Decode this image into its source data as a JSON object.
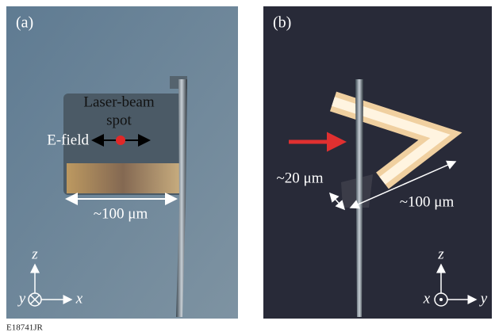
{
  "panels": [
    {
      "label": "(a)",
      "annotations": {
        "laser_line1": "Laser-beam",
        "laser_line2": "spot",
        "efield": "E-field",
        "size": "~100 μm"
      },
      "axes": {
        "up": "z",
        "left": "y",
        "right": "x"
      }
    },
    {
      "label": "(b)",
      "annotations": {
        "thickness": "~20 μm",
        "size": "~100 μm"
      },
      "axes": {
        "up": "z",
        "left": "x",
        "right": "y"
      }
    }
  ],
  "footer": "E18741JR"
}
